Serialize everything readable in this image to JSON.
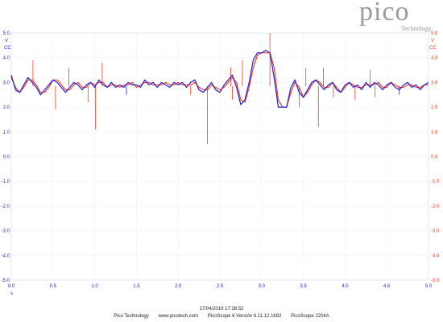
{
  "logo": {
    "word": "pico",
    "sub": "Technology"
  },
  "colors": {
    "series_a": "#1f1fe0",
    "series_b": "#ff3a1a",
    "grid": "#cfe3ea"
  },
  "chart_data": {
    "type": "line",
    "xlim": [
      0,
      5
    ],
    "ylim": [
      -5,
      5
    ],
    "x_ticks": [
      "0.0",
      "0.5",
      "1.0",
      "1.5",
      "2.0",
      "2.5",
      "3.0",
      "3.5",
      "4.0",
      "4.5",
      "5.0"
    ],
    "y_ticks": [
      "5.0",
      "4.0",
      "3.0",
      "2.0",
      "1.0",
      "0.0",
      "-1.0",
      "-2.0",
      "-3.0",
      "-4.0",
      "-5.0"
    ],
    "xlabel": "s",
    "left_axis_units": [
      "V",
      "CC"
    ],
    "right_axis_units": [
      "V",
      "CC"
    ],
    "grid": true,
    "series": [
      {
        "color": "#1f1fe0",
        "x": [
          0,
          0.05,
          0.1,
          0.15,
          0.2,
          0.25,
          0.3,
          0.35,
          0.4,
          0.45,
          0.5,
          0.55,
          0.6,
          0.65,
          0.7,
          0.75,
          0.8,
          0.85,
          0.9,
          0.95,
          1.0,
          1.05,
          1.1,
          1.15,
          1.2,
          1.25,
          1.3,
          1.35,
          1.4,
          1.45,
          1.5,
          1.55,
          1.6,
          1.65,
          1.7,
          1.75,
          1.8,
          1.85,
          1.9,
          1.95,
          2.0,
          2.05,
          2.1,
          2.15,
          2.2,
          2.25,
          2.3,
          2.35,
          2.4,
          2.45,
          2.5,
          2.55,
          2.6,
          2.65,
          2.7,
          2.75,
          2.8,
          2.85,
          2.9,
          2.95,
          3.0,
          3.05,
          3.1,
          3.15,
          3.2,
          3.25,
          3.3,
          3.35,
          3.4,
          3.45,
          3.5,
          3.55,
          3.6,
          3.65,
          3.7,
          3.75,
          3.8,
          3.85,
          3.9,
          3.95,
          4.0,
          4.05,
          4.1,
          4.15,
          4.2,
          4.25,
          4.3,
          4.35,
          4.4,
          4.45,
          4.5,
          4.55,
          4.6,
          4.65,
          4.7,
          4.75,
          4.8,
          4.85,
          4.9,
          4.95,
          5.0
        ],
        "y": [
          3.3,
          2.7,
          2.6,
          2.9,
          3.2,
          3.0,
          2.8,
          2.5,
          2.7,
          2.9,
          3.1,
          3.0,
          2.8,
          2.6,
          2.8,
          3.0,
          2.9,
          2.7,
          2.9,
          3.0,
          2.8,
          3.1,
          2.9,
          2.8,
          3.0,
          2.8,
          2.9,
          2.8,
          3.0,
          2.9,
          2.9,
          2.8,
          3.1,
          2.9,
          3.0,
          2.8,
          3.0,
          2.9,
          2.8,
          3.0,
          2.9,
          3.0,
          2.8,
          3.0,
          3.1,
          2.7,
          2.6,
          2.8,
          3.0,
          2.7,
          2.6,
          2.9,
          3.1,
          3.3,
          2.8,
          2.1,
          2.3,
          3.0,
          3.9,
          4.2,
          4.2,
          4.3,
          4.2,
          3.2,
          2.0,
          2.0,
          2.0,
          2.8,
          3.1,
          2.6,
          2.4,
          2.7,
          3.0,
          3.1,
          2.9,
          2.7,
          2.9,
          3.0,
          2.7,
          2.6,
          2.9,
          3.0,
          2.8,
          2.9,
          2.7,
          3.0,
          2.8,
          3.0,
          2.9,
          2.7,
          2.9,
          3.0,
          2.8,
          2.7,
          2.9,
          3.0,
          2.8,
          2.9,
          2.7,
          2.9,
          3.0
        ]
      },
      {
        "color": "#ff3a1a",
        "x": [
          0,
          0.05,
          0.1,
          0.15,
          0.2,
          0.25,
          0.3,
          0.35,
          0.4,
          0.45,
          0.5,
          0.55,
          0.6,
          0.65,
          0.7,
          0.75,
          0.8,
          0.85,
          0.9,
          0.95,
          1.0,
          1.05,
          1.1,
          1.15,
          1.2,
          1.25,
          1.3,
          1.35,
          1.4,
          1.45,
          1.5,
          1.55,
          1.6,
          1.65,
          1.7,
          1.75,
          1.8,
          1.85,
          1.9,
          1.95,
          2.0,
          2.05,
          2.1,
          2.15,
          2.2,
          2.25,
          2.3,
          2.35,
          2.4,
          2.45,
          2.5,
          2.55,
          2.6,
          2.65,
          2.7,
          2.75,
          2.8,
          2.85,
          2.9,
          2.95,
          3.0,
          3.05,
          3.1,
          3.15,
          3.2,
          3.25,
          3.3,
          3.35,
          3.4,
          3.45,
          3.5,
          3.55,
          3.6,
          3.65,
          3.7,
          3.75,
          3.8,
          3.85,
          3.9,
          3.95,
          4.0,
          4.05,
          4.1,
          4.15,
          4.2,
          4.25,
          4.3,
          4.35,
          4.4,
          4.45,
          4.5,
          4.55,
          4.6,
          4.65,
          4.7,
          4.75,
          4.8,
          4.85,
          4.9,
          4.95,
          5.0
        ],
        "y": [
          3.2,
          2.8,
          2.6,
          2.8,
          3.1,
          3.1,
          2.9,
          2.6,
          2.6,
          2.8,
          3.1,
          3.1,
          2.9,
          2.7,
          2.7,
          2.9,
          3.0,
          2.8,
          2.8,
          3.0,
          2.9,
          3.0,
          3.0,
          2.8,
          2.9,
          2.9,
          2.8,
          2.9,
          2.9,
          3.0,
          2.8,
          2.9,
          3.0,
          3.0,
          2.9,
          2.9,
          2.9,
          3.0,
          2.9,
          2.9,
          3.0,
          2.9,
          2.9,
          2.9,
          3.0,
          2.8,
          2.7,
          2.7,
          2.9,
          2.8,
          2.7,
          2.8,
          3.0,
          3.2,
          3.0,
          2.3,
          2.2,
          2.8,
          3.6,
          4.1,
          4.2,
          4.2,
          4.2,
          3.6,
          2.3,
          2.0,
          2.0,
          2.6,
          3.0,
          2.8,
          2.4,
          2.6,
          2.9,
          3.1,
          3.0,
          2.8,
          2.8,
          3.0,
          2.8,
          2.6,
          2.8,
          3.0,
          2.9,
          2.8,
          2.8,
          2.9,
          2.9,
          2.9,
          3.0,
          2.8,
          2.8,
          3.0,
          2.9,
          2.8,
          2.8,
          2.9,
          2.9,
          2.8,
          2.8,
          2.9,
          2.9
        ]
      }
    ],
    "spikes": [
      {
        "x": 0.26,
        "y": 3.9,
        "color": "#ff3a1a"
      },
      {
        "x": 0.53,
        "y": 1.9,
        "color": "#ff3a1a"
      },
      {
        "x": 0.69,
        "y": 3.6,
        "color": "#ff3a1a"
      },
      {
        "x": 0.92,
        "y": 2.2,
        "color": "#ff3a1a"
      },
      {
        "x": 1.01,
        "y": 1.1,
        "color": "#ff3a1a"
      },
      {
        "x": 1.09,
        "y": 3.8,
        "color": "#ff3a1a"
      },
      {
        "x": 1.38,
        "y": 2.5,
        "color": "#1f1fe0"
      },
      {
        "x": 2.15,
        "y": 2.5,
        "color": "#ff3a1a"
      },
      {
        "x": 2.35,
        "y": 0.5,
        "color": "#ff3a1a"
      },
      {
        "x": 2.63,
        "y": 3.6,
        "color": "#ff3a1a"
      },
      {
        "x": 2.65,
        "y": 2.3,
        "color": "#ff3a1a"
      },
      {
        "x": 2.77,
        "y": 3.9,
        "color": "#ff3a1a"
      },
      {
        "x": 3.1,
        "y": 5.0,
        "color": "#ff3a1a"
      },
      {
        "x": 3.45,
        "y": 2.0,
        "color": "#ff3a1a"
      },
      {
        "x": 3.53,
        "y": 3.6,
        "color": "#ff3a1a"
      },
      {
        "x": 3.68,
        "y": 1.2,
        "color": "#ff3a1a"
      },
      {
        "x": 3.74,
        "y": 3.6,
        "color": "#ff3a1a"
      },
      {
        "x": 3.86,
        "y": 2.4,
        "color": "#ff3a1a"
      },
      {
        "x": 4.12,
        "y": 2.3,
        "color": "#ff3a1a"
      },
      {
        "x": 4.3,
        "y": 3.5,
        "color": "#ff3a1a"
      },
      {
        "x": 4.36,
        "y": 2.4,
        "color": "#ff3a1a"
      },
      {
        "x": 4.65,
        "y": 2.5,
        "color": "#1f1fe0"
      }
    ]
  },
  "footer": {
    "timestamp": "17/04/2019 17:38:52",
    "company": "Pico Technology",
    "website": "www.picotech.com",
    "software": "PicoScope 6 Versión 6.11.12.1692",
    "device": "PicoScope 2204A"
  }
}
